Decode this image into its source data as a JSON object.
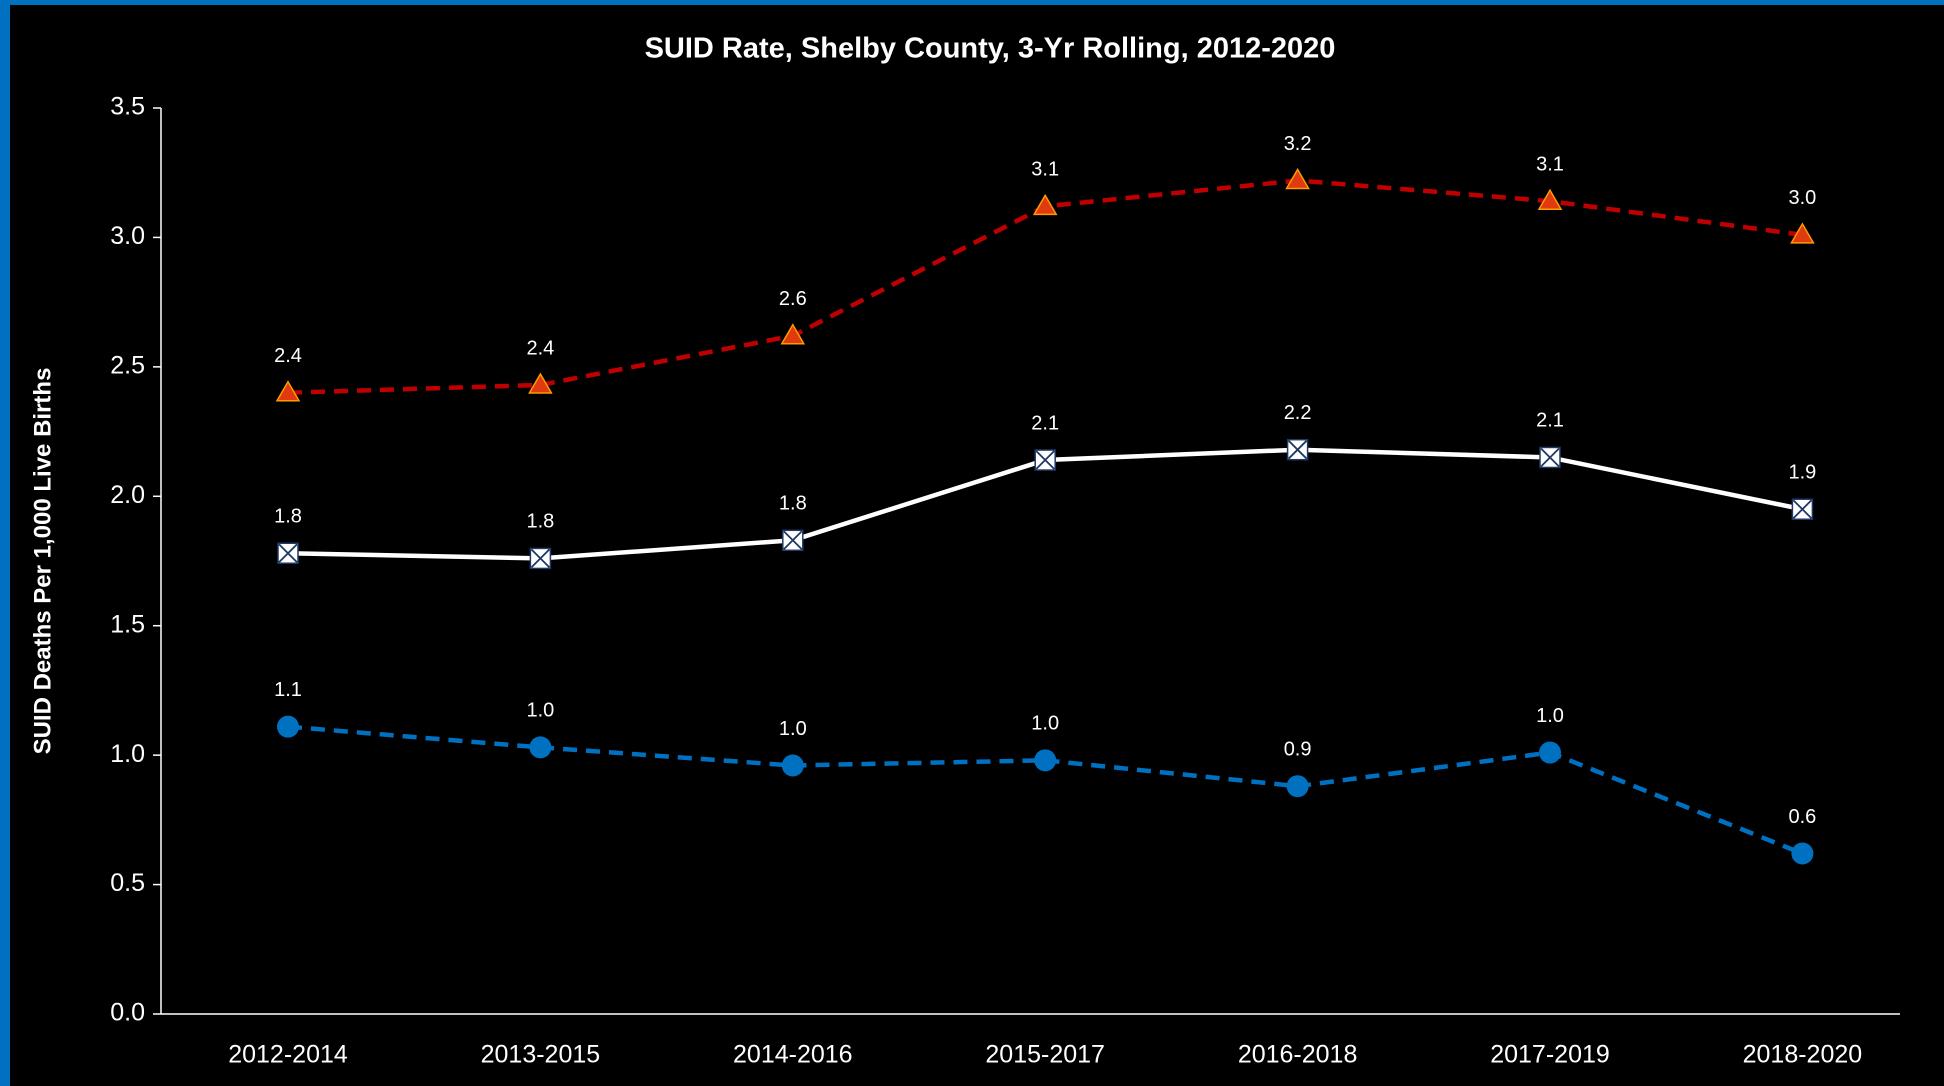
{
  "chart_data": {
    "type": "line",
    "title": "SUID Rate, Shelby County, 3-Yr Rolling, 2012-2020",
    "y_label": "SUID Deaths Per 1,000 Live Births",
    "categories": [
      "2012-2014",
      "2013-2015",
      "2014-2016",
      "2015-2017",
      "2016-2018",
      "2017-2019",
      "2018-2020"
    ],
    "series": [
      {
        "color": "#c00000",
        "marker": "triangle",
        "dash": "dashed",
        "values": [
          2.4,
          2.43,
          2.62,
          3.12,
          3.22,
          3.14,
          3.01
        ],
        "value_labels": [
          "2.4",
          "2.4",
          "2.6",
          "3.1",
          "3.2",
          "3.1",
          "3.0"
        ]
      },
      {
        "color": "#ffffff",
        "marker": "square-x",
        "dash": "solid",
        "values": [
          1.78,
          1.76,
          1.83,
          2.14,
          2.18,
          2.15,
          1.95
        ],
        "value_labels": [
          "1.8",
          "1.8",
          "1.8",
          "2.1",
          "2.2",
          "2.1",
          "1.9"
        ]
      },
      {
        "color": "#0070c0",
        "marker": "circle",
        "dash": "dashed",
        "values": [
          1.11,
          1.03,
          0.96,
          0.98,
          0.88,
          1.01,
          0.62
        ],
        "value_labels": [
          "1.1",
          "1.0",
          "1.0",
          "1.0",
          "0.9",
          "1.0",
          "0.6"
        ]
      }
    ],
    "ylim": [
      0,
      3.5
    ],
    "yticks": [
      {
        "value": 0,
        "label": "0.0"
      },
      0.5,
      {
        "value": 1,
        "label": "1.0"
      },
      1.5,
      {
        "value": 2,
        "label": "2.0"
      },
      2.5,
      {
        "value": 3,
        "label": "3.0"
      },
      3.5
    ],
    "grid": false
  }
}
